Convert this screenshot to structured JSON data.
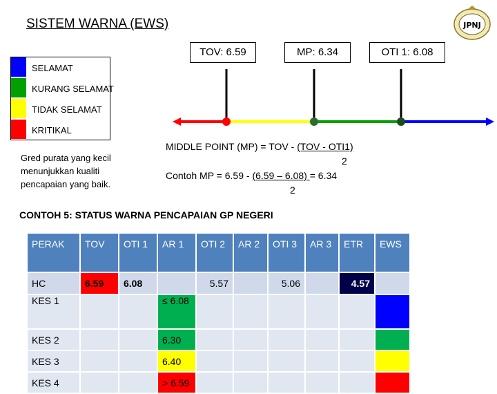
{
  "title": "SISTEM WARNA (EWS)",
  "logo": {
    "text": "JPNJ"
  },
  "legend": [
    {
      "label": "SELAMAT",
      "color": "#0000ff"
    },
    {
      "label": "KURANG SELAMAT",
      "color": "#00a000"
    },
    {
      "label": "TIDAK SELAMAT",
      "color": "#ffff00"
    },
    {
      "label": "KRITIKAL",
      "color": "#ff0000"
    }
  ],
  "callouts": {
    "tov": "TOV: 6.59",
    "mp": "MP: 6.34",
    "oti1": "OTI 1: 6.08"
  },
  "note": "Gred purata yang kecil menunjukkan kualiti pencapaian yang baik.",
  "formula": {
    "line1_prefix": "MIDDLE POINT (MP) = TOV - ",
    "line1_numerator": "(TOV - OTI1)",
    "line1_denominator": "2",
    "line2_prefix": "Contoh MP = 6.59 - ",
    "line2_numerator": "(6.59 – 6.08) ",
    "line2_suffix": "= 6.34",
    "line2_denominator": "2"
  },
  "section_title": "CONTOH 5:  STATUS WARNA PENCAPAIAN GP NEGERI",
  "table": {
    "headers": [
      "PERAK",
      "TOV",
      "OTI 1",
      "AR 1",
      "OTI 2",
      "AR 2",
      "OTI 3",
      "AR 3",
      "ETR",
      "EWS"
    ],
    "rows": {
      "hc": {
        "label": "HC",
        "tov": "6.59",
        "oti1": "6.08",
        "oti2": "5.57",
        "oti3": "5.06",
        "etr": "4.57"
      },
      "kes1": {
        "label": "KES 1",
        "ar1": "≤ 6.08"
      },
      "kes2": {
        "label": "KES 2",
        "ar1": "6.30"
      },
      "kes3": {
        "label": "KES 3",
        "ar1": "6.40"
      },
      "kes4": {
        "label": "KES 4",
        "ar1": "> 6.59"
      }
    }
  },
  "colors": {
    "red": "#ff0000",
    "yellow": "#ffff00",
    "green": "#00a000",
    "blue": "#0000ff",
    "header": "#4f81bd",
    "etr_cell": "#00004a"
  }
}
